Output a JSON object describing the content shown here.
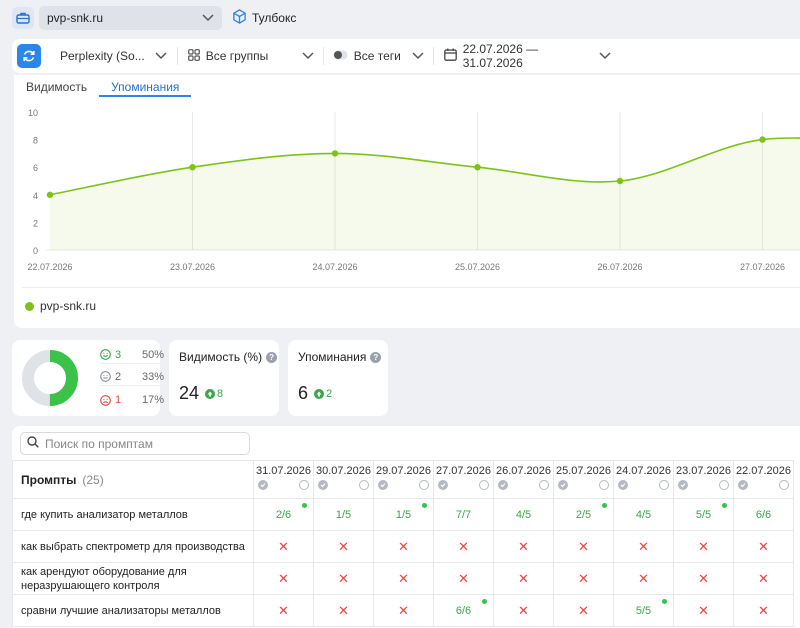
{
  "header": {
    "project": "pvp-snk.ru",
    "toolbox_label": "Тулбокс"
  },
  "filters": {
    "engine": "Perplexity (So...",
    "groups": "Все группы",
    "tags": "Все теги",
    "date_range": "22.07.2026 — 31.07.2026"
  },
  "tabs": [
    "Видимость",
    "Упоминания"
  ],
  "active_tab": "Упоминания",
  "chart_data": {
    "type": "line",
    "x": [
      "22.07.2026",
      "23.07.2026",
      "24.07.2026",
      "25.07.2026",
      "26.07.2026",
      "27.07.2026"
    ],
    "series": [
      {
        "name": "pvp-snk.ru",
        "values": [
          4,
          6,
          7,
          6,
          5,
          8
        ],
        "color": "#7ec11a"
      }
    ],
    "y_ticks": [
      "10",
      "8",
      "6",
      "4",
      "2",
      "0"
    ],
    "ylim": [
      0,
      10
    ],
    "grid": true,
    "legend": "bottom-left"
  },
  "sentiment": {
    "rows": [
      {
        "count": "3",
        "pct": "50%",
        "color": "#3aa64a",
        "icon": "smile-positive-icon"
      },
      {
        "count": "2",
        "pct": "33%",
        "color": "#8a9099",
        "icon": "smile-neutral-icon"
      },
      {
        "count": "1",
        "pct": "17%",
        "color": "#e24848",
        "icon": "smile-negative-icon"
      }
    ]
  },
  "stats": {
    "visibility": {
      "title": "Видимость (%)",
      "value": "24",
      "delta": "8"
    },
    "mentions": {
      "title": "Упоминания",
      "value": "6",
      "delta": "2"
    }
  },
  "table": {
    "search_placeholder": "Поиск по промптам",
    "prompts_title": "Промпты",
    "prompts_count": "(25)",
    "dates": [
      "31.07.2026",
      "30.07.2026",
      "29.07.2026",
      "27.07.2026",
      "26.07.2026",
      "25.07.2026",
      "24.07.2026",
      "23.07.2026",
      "22.07.2026"
    ],
    "rows": [
      {
        "prompt": "где купить анализатор металлов",
        "cells": [
          "2/6",
          "1/5",
          "1/5",
          "7/7",
          "4/5",
          "2/5",
          "4/5",
          "5/5",
          "6/6"
        ],
        "dots": [
          true,
          false,
          true,
          false,
          false,
          true,
          false,
          true,
          false
        ]
      },
      {
        "prompt": "как выбрать спектрометр для производства",
        "cells": [
          "x",
          "x",
          "x",
          "x",
          "x",
          "x",
          "x",
          "x",
          "x"
        ],
        "dots": [
          false,
          false,
          false,
          false,
          false,
          false,
          false,
          false,
          false
        ]
      },
      {
        "prompt": "как арендуют оборудование для неразрушающего контроля",
        "cells": [
          "x",
          "x",
          "x",
          "x",
          "x",
          "x",
          "x",
          "x",
          "x"
        ],
        "dots": [
          false,
          false,
          false,
          false,
          false,
          false,
          false,
          false,
          false
        ]
      },
      {
        "prompt": "сравни лучшие анализаторы металлов",
        "cells": [
          "x",
          "x",
          "x",
          "6/6",
          "x",
          "x",
          "5/5",
          "x",
          "x"
        ],
        "dots": [
          false,
          false,
          false,
          true,
          false,
          false,
          true,
          false,
          false
        ]
      }
    ]
  },
  "colors": {
    "accent": "#2a86e8",
    "positive": "#3aa64a",
    "negative": "#e24848",
    "line": "#7ec11a"
  }
}
